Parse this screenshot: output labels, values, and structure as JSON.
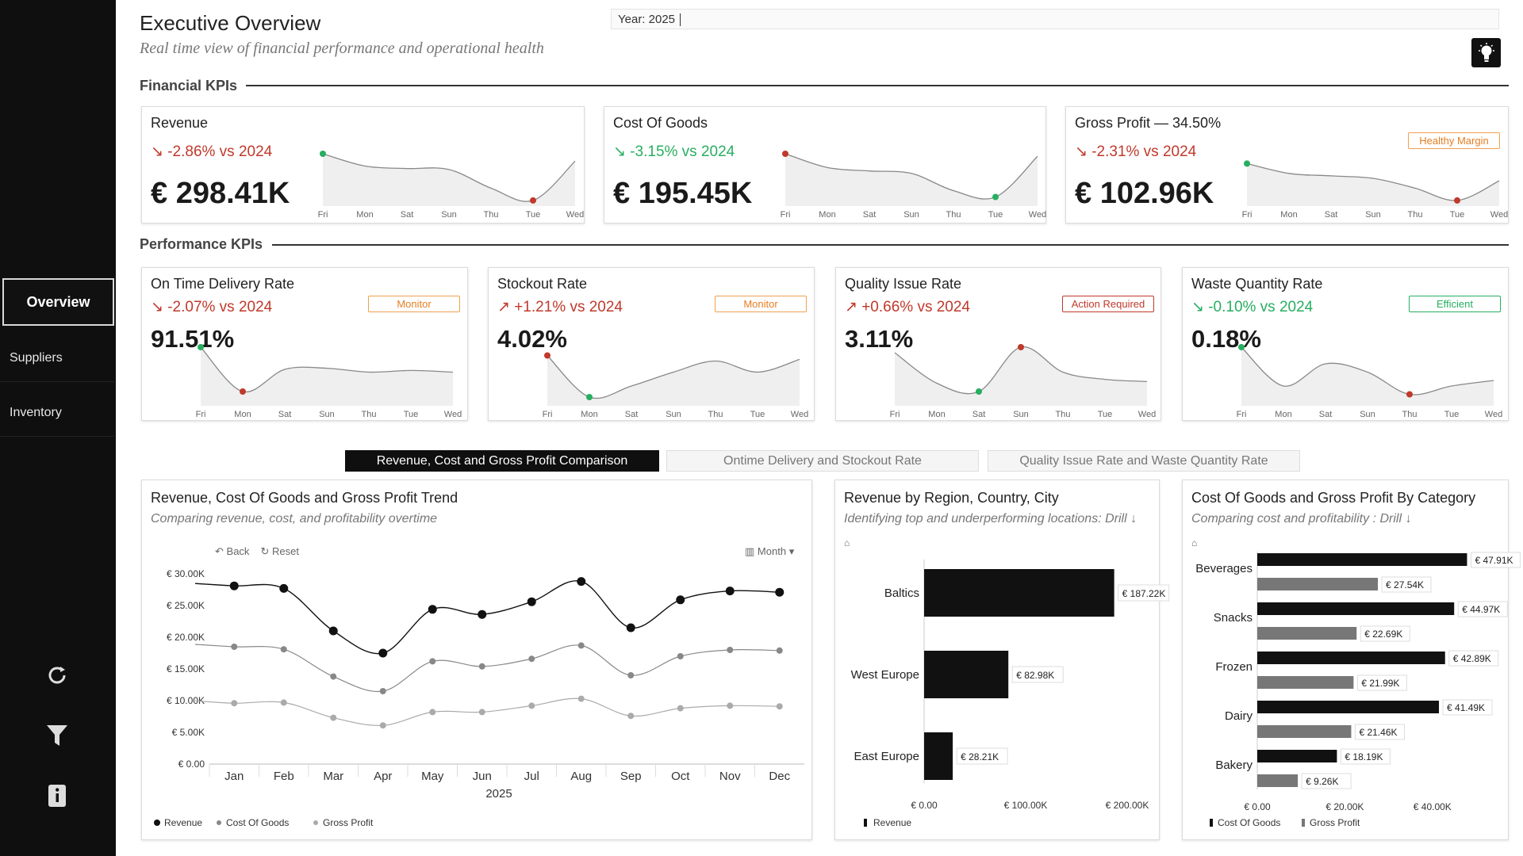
{
  "header": {
    "title": "Executive Overview",
    "subtitle": "Real time view of financial performance and operational health",
    "year_filter": "Year: 2025"
  },
  "sidebar": {
    "items": [
      {
        "label": "Overview",
        "active": true
      },
      {
        "label": "Suppliers",
        "active": false
      },
      {
        "label": "Inventory",
        "active": false
      }
    ],
    "icons": [
      "refresh-icon",
      "filter-icon",
      "info-icon"
    ]
  },
  "sections": {
    "financial": "Financial KPIs",
    "performance": "Performance KPIs"
  },
  "spark_days": [
    "Fri",
    "Mon",
    "Sat",
    "Sun",
    "Thu",
    "Tue",
    "Wed"
  ],
  "financial_kpis": [
    {
      "title": "Revenue",
      "delta": "↘ -2.86% vs 2024",
      "delta_type": "neg",
      "value": "€ 298.41K",
      "badge": "",
      "spark": [
        1.0,
        0.75,
        0.7,
        0.68,
        0.3,
        0.05,
        0.85
      ],
      "high_index": 0,
      "low_index": 5
    },
    {
      "title": "Cost Of Goods",
      "delta": "↘ -3.15% vs 2024",
      "delta_type": "pos",
      "value": "€ 195.45K",
      "badge": "",
      "spark": [
        1.0,
        0.72,
        0.65,
        0.6,
        0.25,
        0.12,
        0.95
      ],
      "high_index": 0,
      "low_index": 5
    },
    {
      "title": "Gross Profit — 34.50%",
      "delta": "↘ -2.31% vs 2024",
      "delta_type": "neg",
      "value": "€ 102.96K",
      "badge": "Healthy Margin",
      "badge_type": "healthy",
      "spark": [
        0.8,
        0.6,
        0.55,
        0.5,
        0.3,
        0.05,
        0.45
      ],
      "high_index": 0,
      "low_index": 5
    }
  ],
  "performance_kpis": [
    {
      "title": "On Time Delivery Rate",
      "delta": "↘ -2.07% vs 2024",
      "delta_type": "neg",
      "value": "91.51%",
      "badge": "Monitor",
      "badge_type": "monitor",
      "spark": [
        1.0,
        0.2,
        0.6,
        0.62,
        0.55,
        0.58,
        0.55
      ],
      "high_index": 0,
      "low_index": 1
    },
    {
      "title": "Stockout Rate",
      "delta": "↗ +1.21% vs 2024",
      "delta_type": "neg",
      "value": "4.02%",
      "badge": "Monitor",
      "badge_type": "monitor",
      "spark": [
        0.85,
        0.1,
        0.3,
        0.55,
        0.75,
        0.55,
        0.78
      ],
      "high_index": 0,
      "low_index": 1
    },
    {
      "title": "Quality Issue Rate",
      "delta": "↗ +0.66% vs 2024",
      "delta_type": "neg",
      "value": "3.11%",
      "badge": "Action Required",
      "badge_type": "action",
      "spark": [
        0.9,
        0.35,
        0.2,
        1.0,
        0.55,
        0.42,
        0.38
      ],
      "high_index": 3,
      "low_index": 2
    },
    {
      "title": "Waste Quantity Rate",
      "delta": "↘ -0.10% vs 2024",
      "delta_type": "pos",
      "value": "0.18%",
      "badge": "Efficient",
      "badge_type": "efficient",
      "spark": [
        1.0,
        0.3,
        0.7,
        0.55,
        0.15,
        0.3,
        0.4
      ],
      "high_index": 0,
      "low_index": 4
    }
  ],
  "tabs": [
    {
      "label": "Revenue, Cost and Gross Profit Comparison",
      "active": true
    },
    {
      "label": "Ontime Delivery and Stockout Rate",
      "active": false
    },
    {
      "label": "Quality Issue Rate and Waste Quantity Rate",
      "active": false
    }
  ],
  "trend_chart": {
    "title": "Revenue, Cost Of Goods and Gross Profit Trend",
    "subtitle": "Comparing revenue, cost, and profitability overtime",
    "back": "Back",
    "reset": "Reset",
    "granularity": "Month",
    "chart_data": {
      "type": "line",
      "x": [
        "Jan",
        "Feb",
        "Mar",
        "Apr",
        "May",
        "Jun",
        "Jul",
        "Aug",
        "Sep",
        "Oct",
        "Nov",
        "Dec"
      ],
      "xlabel": "2025",
      "yticks": [
        "€ 0.00",
        "€ 5.00K",
        "€ 10.00K",
        "€ 15.00K",
        "€ 20.00K",
        "€ 25.00K",
        "€ 30.00K"
      ],
      "ylim": [
        0,
        30000
      ],
      "series": [
        {
          "name": "Revenue",
          "values": [
            28100,
            27700,
            21000,
            17500,
            24400,
            23600,
            25600,
            28800,
            21500,
            25900,
            27300,
            27100
          ],
          "color": "#111111"
        },
        {
          "name": "Cost Of Goods",
          "values": [
            18500,
            18100,
            13800,
            11500,
            16200,
            15400,
            16600,
            18700,
            14000,
            17000,
            18000,
            17900
          ],
          "color": "#888888"
        },
        {
          "name": "Gross Profit",
          "values": [
            9600,
            9700,
            7300,
            6100,
            8200,
            8200,
            9200,
            10300,
            7600,
            8800,
            9200,
            9100
          ],
          "color": "#aaaaaa"
        }
      ]
    }
  },
  "region_chart": {
    "title": "Revenue by Region, Country, City",
    "subtitle": "Identifying top and underperforming locations: Drill ↓",
    "chart_data": {
      "type": "bar",
      "categories": [
        "Baltics",
        "West Europe",
        "East Europe"
      ],
      "values": [
        187220,
        82980,
        28210
      ],
      "labels": [
        "€ 187.22K",
        "€ 82.98K",
        "€ 28.21K"
      ],
      "xticks": [
        "€ 0.00",
        "€ 100.00K",
        "€ 200.00K"
      ],
      "xlim": [
        0,
        200000
      ],
      "series": [
        {
          "name": "Revenue",
          "color": "#111111"
        }
      ]
    }
  },
  "category_chart": {
    "title": "Cost Of Goods and Gross Profit By Category",
    "subtitle": "Comparing cost and profitability :  Drill ↓",
    "chart_data": {
      "type": "bar",
      "categories": [
        "Beverages",
        "Snacks",
        "Frozen",
        "Dairy",
        "Bakery"
      ],
      "series": [
        {
          "name": "Cost Of Goods",
          "values": [
            47910,
            44970,
            42890,
            41490,
            18190
          ],
          "labels": [
            "€ 47.91K",
            "€ 44.97K",
            "€ 42.89K",
            "€ 41.49K",
            "€ 18.19K"
          ],
          "color": "#111111"
        },
        {
          "name": "Gross Profit",
          "values": [
            27540,
            22690,
            21990,
            21460,
            9260
          ],
          "labels": [
            "€ 27.54K",
            "€ 22.69K",
            "€ 21.99K",
            "€ 21.46K",
            "€ 9.26K"
          ],
          "color": "#777777"
        }
      ],
      "xticks": [
        "€ 0.00",
        "€ 20.00K",
        "€ 40.00K"
      ],
      "xlim": [
        0,
        50000
      ]
    }
  }
}
